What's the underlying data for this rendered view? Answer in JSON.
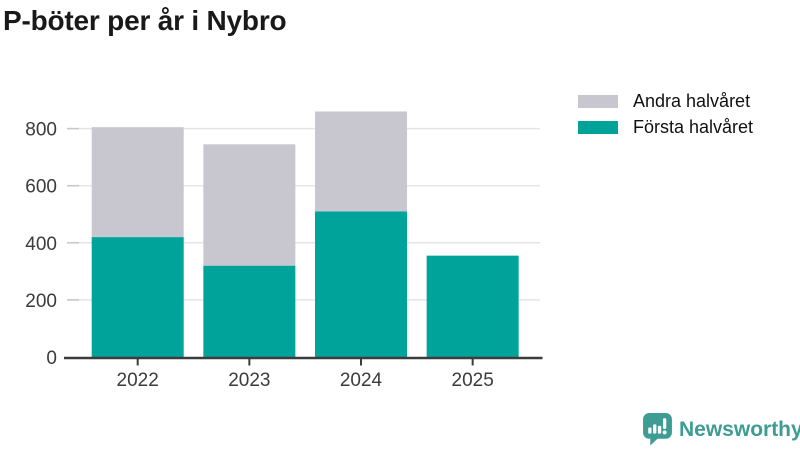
{
  "chart_data": {
    "type": "bar",
    "stacked": true,
    "title": "P-böter per år i Nybro",
    "categories": [
      "2022",
      "2023",
      "2024",
      "2025"
    ],
    "series": [
      {
        "name": "Första halvåret",
        "color": "#00a39a",
        "values": [
          420,
          320,
          510,
          355
        ]
      },
      {
        "name": "Andra halvåret",
        "color": "#c8c7cf",
        "values": [
          385,
          425,
          350,
          0
        ]
      }
    ],
    "totals": [
      805,
      745,
      860,
      355
    ],
    "xlabel": "",
    "ylabel": "",
    "ylim": [
      0,
      880
    ],
    "yticks": [
      0,
      200,
      400,
      600,
      800
    ],
    "grid": "horizontal",
    "legend_position": "top-right"
  },
  "legend": {
    "items": [
      {
        "label": "Andra halvåret",
        "color": "#c8c7cf"
      },
      {
        "label": "Första halvåret",
        "color": "#00a39a"
      }
    ]
  },
  "footer": {
    "brand": "Newsworthy"
  },
  "colors": {
    "teal": "#00a39a",
    "gray": "#c8c7cf",
    "brand_teal": "#3e9c95",
    "title_text": "#191919",
    "axis_text": "#3b3b3b",
    "axis_line": "#3c3c3c",
    "gridline": "#e5e5e8",
    "tick": "#c6c6cb"
  }
}
